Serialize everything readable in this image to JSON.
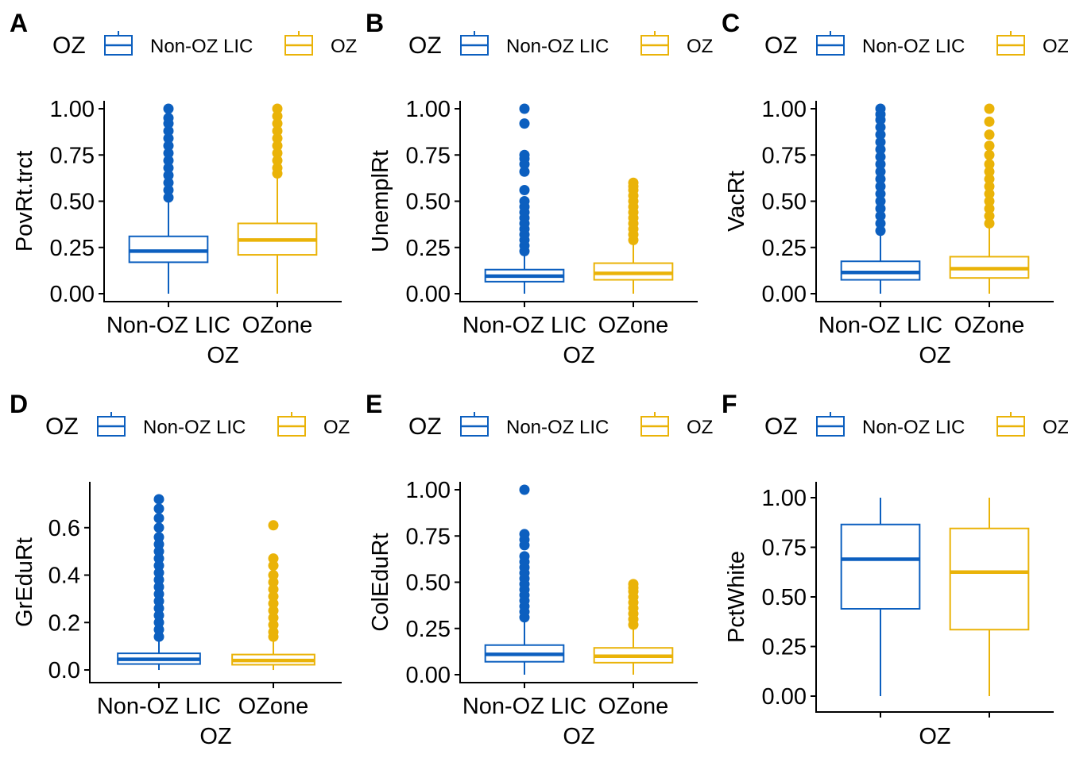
{
  "legend_title": "OZ",
  "x_axis_label": "OZ",
  "colors": {
    "Non-OZ LIC": "#0c5fbf",
    "OZone": "#eab308"
  },
  "chart_data": [
    {
      "type": "boxplot",
      "panel": "A",
      "ylabel": "PovRt.trct",
      "xlabel": "OZ",
      "ylim": [
        0,
        1
      ],
      "yticks": [
        0,
        0.25,
        0.5,
        0.75,
        1
      ],
      "ytick_labels": [
        "0.00",
        "0.25",
        "0.50",
        "0.75",
        "1.00"
      ],
      "categories": [
        "Non-OZ LIC",
        "OZone"
      ],
      "show_x_tick_labels": true,
      "legend": {
        "title": "OZ",
        "entries": [
          "Non-OZ LIC",
          "OZ"
        ]
      },
      "series": [
        {
          "category": "Non-OZ LIC",
          "min": 0.0,
          "q1": 0.17,
          "median": 0.23,
          "q3": 0.31,
          "max": 0.5,
          "outliers": [
            0.52,
            0.56,
            0.6,
            0.64,
            0.68,
            0.72,
            0.76,
            0.8,
            0.84,
            0.88,
            0.92,
            0.95,
            1.0
          ]
        },
        {
          "category": "OZone",
          "min": 0.0,
          "q1": 0.21,
          "median": 0.29,
          "q3": 0.38,
          "max": 0.63,
          "outliers": [
            0.65,
            0.68,
            0.72,
            0.76,
            0.8,
            0.84,
            0.88,
            0.92,
            0.96,
            1.0
          ]
        }
      ]
    },
    {
      "type": "boxplot",
      "panel": "B",
      "ylabel": "UnemplRt",
      "xlabel": "OZ",
      "ylim": [
        0,
        1
      ],
      "yticks": [
        0,
        0.25,
        0.5,
        0.75,
        1
      ],
      "ytick_labels": [
        "0.00",
        "0.25",
        "0.50",
        "0.75",
        "1.00"
      ],
      "categories": [
        "Non-OZ LIC",
        "OZone"
      ],
      "show_x_tick_labels": true,
      "legend": {
        "title": "OZ",
        "entries": [
          "Non-OZ LIC",
          "OZ"
        ]
      },
      "series": [
        {
          "category": "Non-OZ LIC",
          "min": 0.0,
          "q1": 0.065,
          "median": 0.095,
          "q3": 0.13,
          "max": 0.22,
          "outliers": [
            0.23,
            0.26,
            0.29,
            0.32,
            0.35,
            0.38,
            0.41,
            0.44,
            0.47,
            0.5,
            0.56,
            0.66,
            0.7,
            0.73,
            0.75,
            0.92,
            1.0
          ]
        },
        {
          "category": "OZone",
          "min": 0.0,
          "q1": 0.075,
          "median": 0.11,
          "q3": 0.165,
          "max": 0.28,
          "outliers": [
            0.29,
            0.32,
            0.35,
            0.38,
            0.41,
            0.44,
            0.47,
            0.5,
            0.53,
            0.56,
            0.58,
            0.6
          ]
        }
      ]
    },
    {
      "type": "boxplot",
      "panel": "C",
      "ylabel": "VacRt",
      "xlabel": "OZ",
      "ylim": [
        0,
        1
      ],
      "yticks": [
        0,
        0.25,
        0.5,
        0.75,
        1
      ],
      "ytick_labels": [
        "0.00",
        "0.25",
        "0.50",
        "0.75",
        "1.00"
      ],
      "categories": [
        "Non-OZ LIC",
        "OZone"
      ],
      "show_x_tick_labels": true,
      "legend": {
        "title": "OZ",
        "entries": [
          "Non-OZ LIC",
          "OZ"
        ]
      },
      "series": [
        {
          "category": "Non-OZ LIC",
          "min": 0.0,
          "q1": 0.075,
          "median": 0.115,
          "q3": 0.175,
          "max": 0.32,
          "outliers": [
            0.34,
            0.38,
            0.42,
            0.46,
            0.5,
            0.54,
            0.58,
            0.62,
            0.66,
            0.7,
            0.74,
            0.78,
            0.82,
            0.86,
            0.9,
            0.94,
            0.97,
            1.0
          ]
        },
        {
          "category": "OZone",
          "min": 0.0,
          "q1": 0.085,
          "median": 0.135,
          "q3": 0.2,
          "max": 0.36,
          "outliers": [
            0.38,
            0.42,
            0.46,
            0.5,
            0.54,
            0.58,
            0.62,
            0.66,
            0.7,
            0.75,
            0.8,
            0.86,
            0.93,
            1.0
          ]
        }
      ]
    },
    {
      "type": "boxplot",
      "panel": "D",
      "ylabel": "GrEduRt",
      "xlabel": "OZ",
      "ylim": [
        -0.02,
        0.76
      ],
      "yticks": [
        0,
        0.2,
        0.4,
        0.6
      ],
      "ytick_labels": [
        "0.0",
        "0.2",
        "0.4",
        "0.6"
      ],
      "categories": [
        "Non-OZ LIC",
        "OZone"
      ],
      "show_x_tick_labels": true,
      "legend": {
        "title": "OZ",
        "entries": [
          "Non-OZ LIC",
          "OZ"
        ]
      },
      "series": [
        {
          "category": "Non-OZ LIC",
          "min": 0.0,
          "q1": 0.025,
          "median": 0.045,
          "q3": 0.07,
          "max": 0.13,
          "outliers": [
            0.14,
            0.17,
            0.2,
            0.23,
            0.26,
            0.29,
            0.32,
            0.35,
            0.38,
            0.41,
            0.44,
            0.47,
            0.5,
            0.53,
            0.56,
            0.6,
            0.64,
            0.68,
            0.72
          ]
        },
        {
          "category": "OZone",
          "min": 0.0,
          "q1": 0.022,
          "median": 0.04,
          "q3": 0.065,
          "max": 0.13,
          "outliers": [
            0.14,
            0.16,
            0.19,
            0.22,
            0.25,
            0.28,
            0.31,
            0.34,
            0.37,
            0.4,
            0.44,
            0.47,
            0.61
          ]
        }
      ]
    },
    {
      "type": "boxplot",
      "panel": "E",
      "ylabel": "ColEduRt",
      "xlabel": "OZ",
      "ylim": [
        0,
        1
      ],
      "yticks": [
        0,
        0.25,
        0.5,
        0.75,
        1
      ],
      "ytick_labels": [
        "0.00",
        "0.25",
        "0.50",
        "0.75",
        "1.00"
      ],
      "categories": [
        "Non-OZ LIC",
        "OZone"
      ],
      "show_x_tick_labels": true,
      "legend": {
        "title": "OZ",
        "entries": [
          "Non-OZ LIC",
          "OZ"
        ]
      },
      "series": [
        {
          "category": "Non-OZ LIC",
          "min": 0.0,
          "q1": 0.07,
          "median": 0.11,
          "q3": 0.16,
          "max": 0.3,
          "outliers": [
            0.31,
            0.34,
            0.37,
            0.4,
            0.43,
            0.46,
            0.49,
            0.52,
            0.55,
            0.58,
            0.61,
            0.64,
            0.7,
            0.73,
            0.76,
            1.0
          ]
        },
        {
          "category": "OZone",
          "min": 0.0,
          "q1": 0.065,
          "median": 0.1,
          "q3": 0.145,
          "max": 0.26,
          "outliers": [
            0.27,
            0.3,
            0.33,
            0.36,
            0.39,
            0.42,
            0.45,
            0.47,
            0.49
          ]
        }
      ]
    },
    {
      "type": "boxplot",
      "panel": "F",
      "ylabel": "PctWhite",
      "xlabel": "OZ",
      "ylim": [
        -0.04,
        1.04
      ],
      "yticks": [
        0,
        0.25,
        0.5,
        0.75,
        1
      ],
      "ytick_labels": [
        "0.00",
        "0.25",
        "0.50",
        "0.75",
        "1.00"
      ],
      "categories": [
        "Non-OZ LIC",
        "OZone"
      ],
      "show_x_tick_labels": false,
      "legend": {
        "title": "OZ",
        "entries": [
          "Non-OZ LIC",
          "OZ"
        ]
      },
      "series": [
        {
          "category": "Non-OZ LIC",
          "min": 0.0,
          "q1": 0.44,
          "median": 0.69,
          "q3": 0.865,
          "max": 1.0,
          "outliers": []
        },
        {
          "category": "OZone",
          "min": 0.0,
          "q1": 0.335,
          "median": 0.625,
          "q3": 0.845,
          "max": 1.0,
          "outliers": []
        }
      ]
    }
  ]
}
